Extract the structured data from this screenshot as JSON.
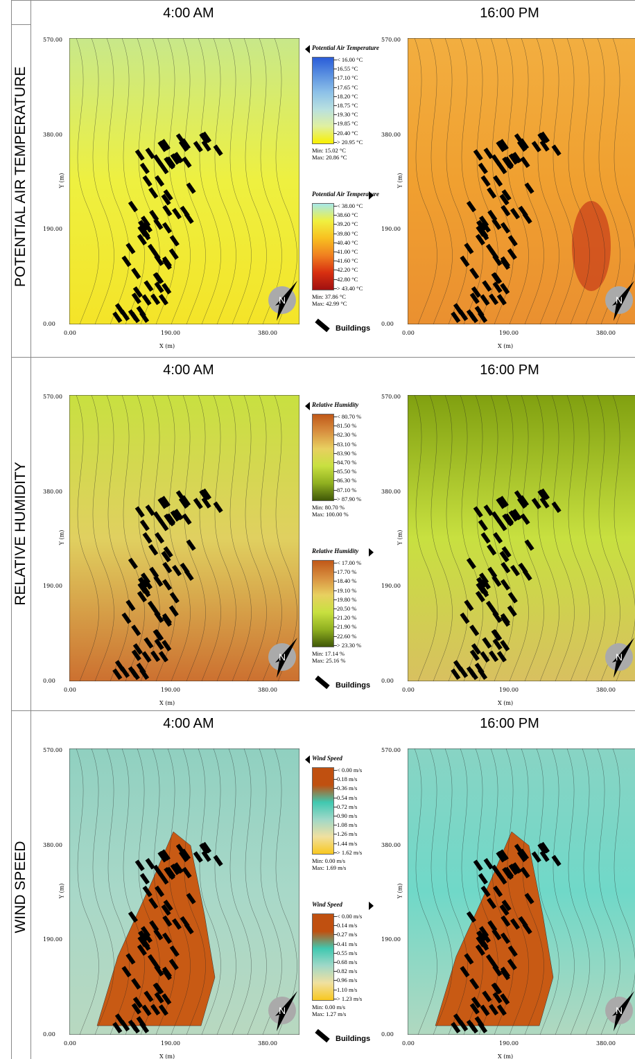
{
  "columns": [
    "4:00 AM",
    "16:00 PM"
  ],
  "axes": {
    "x_label": "X (m)",
    "y_label": "Y (m)",
    "x_ticks": [
      "0.00",
      "190.00",
      "380.00"
    ],
    "y_ticks": [
      "0.00",
      "190.00",
      "380.00",
      "570.00"
    ]
  },
  "north": "N",
  "buildings_label": "Buildings",
  "rows": [
    {
      "label": "POTENTIAL AIR TEMPERATURE",
      "legends": [
        {
          "title": "Potential Air Temperature",
          "entries": [
            "< 16.00 °C",
            "16.55 °C",
            "17.10 °C",
            "17.65 °C",
            "18.20 °C",
            "18.75 °C",
            "19.30 °C",
            "19.85 °C",
            "20.40 °C",
            "> 20.95 °C"
          ],
          "min": "Min: 15.02 °C",
          "max": "Max: 20.86 °C"
        },
        {
          "title": "Potential Air Temperature",
          "entries": [
            "< 38.00 °C",
            "38.60 °C",
            "39.20 °C",
            "39.80 °C",
            "40.40 °C",
            "41.00 °C",
            "41.60 °C",
            "42.20 °C",
            "42.80 °C",
            "> 43.40 °C"
          ],
          "min": "Min: 37.86 °C",
          "max": "Max: 42.99 °C"
        }
      ]
    },
    {
      "label": "RELATIVE HUMIDITY",
      "legends": [
        {
          "title": "Relative Humidity",
          "entries": [
            "< 80.70 %",
            "81.50 %",
            "82.30 %",
            "83.10 %",
            "83.90 %",
            "84.70 %",
            "85.50 %",
            "86.30 %",
            "87.10 %",
            "> 87.90 %"
          ],
          "min": "Min: 80.70 %",
          "max": "Max: 100.00 %"
        },
        {
          "title": "Relative Humidity",
          "entries": [
            "< 17.00 %",
            "17.70 %",
            "18.40 %",
            "19.10 %",
            "19.80 %",
            "20.50 %",
            "21.20 %",
            "21.90 %",
            "22.60 %",
            "> 23.30 %"
          ],
          "min": "Min: 17.14 %",
          "max": "Max: 25.16 %"
        }
      ]
    },
    {
      "label": "WIND SPEED",
      "legends": [
        {
          "title": "Wind Speed",
          "entries": [
            "< 0.00 m/s",
            "0.18 m/s",
            "0.36 m/s",
            "0.54 m/s",
            "0.72 m/s",
            "0.90 m/s",
            "1.08 m/s",
            "1.26 m/s",
            "1.44 m/s",
            "> 1.62 m/s"
          ],
          "min": "Min: 0.00 m/s",
          "max": "Max: 1.69 m/s"
        },
        {
          "title": "Wind Speed",
          "entries": [
            "< 0.00 m/s",
            "0.14 m/s",
            "0.27 m/s",
            "0.41 m/s",
            "0.55 m/s",
            "0.68 m/s",
            "0.82 m/s",
            "0.96 m/s",
            "1.10 m/s",
            "> 1.23 m/s"
          ],
          "min": "Min: 0.00 m/s",
          "max": "Max: 1.27 m/s"
        }
      ]
    }
  ]
}
